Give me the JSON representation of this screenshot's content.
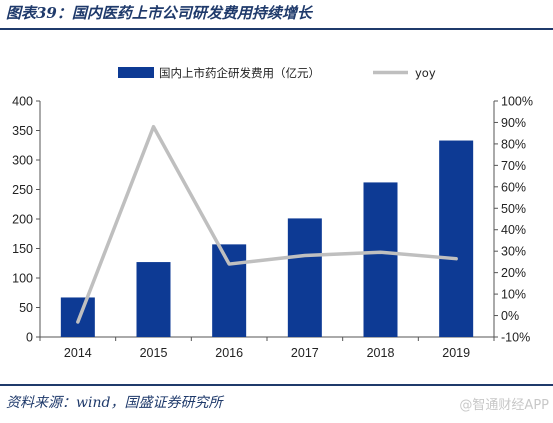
{
  "header": {
    "title": "图表39：国内医药上市公司研发费用持续增长"
  },
  "footer": {
    "source": "资料来源：wind，国盛证券研究所",
    "watermark": "@智通财经APP"
  },
  "chart_data": {
    "type": "bar",
    "title": "图表39：国内医药上市公司研发费用持续增长",
    "categories": [
      "2014",
      "2015",
      "2016",
      "2017",
      "2018",
      "2019"
    ],
    "series": [
      {
        "name": "国内上市药企研发费用（亿元）",
        "type": "bar",
        "axis": "left",
        "color": "#0d3a94",
        "values": [
          67,
          127,
          157,
          201,
          262,
          333
        ]
      },
      {
        "name": "yoy",
        "type": "line",
        "axis": "right",
        "color": "#bfbfbf",
        "values": [
          -0.03,
          0.88,
          0.24,
          0.28,
          0.295,
          0.265
        ]
      }
    ],
    "y_left": {
      "min": 0,
      "max": 400,
      "step": 50,
      "ticks": [
        "0",
        "50",
        "100",
        "150",
        "200",
        "250",
        "300",
        "350",
        "400"
      ]
    },
    "y_right": {
      "min": -0.1,
      "max": 1.0,
      "step": 0.1,
      "ticks": [
        "-10%",
        "0%",
        "10%",
        "20%",
        "30%",
        "40%",
        "50%",
        "60%",
        "70%",
        "80%",
        "90%",
        "100%"
      ]
    },
    "grid": false,
    "legend": "top"
  }
}
